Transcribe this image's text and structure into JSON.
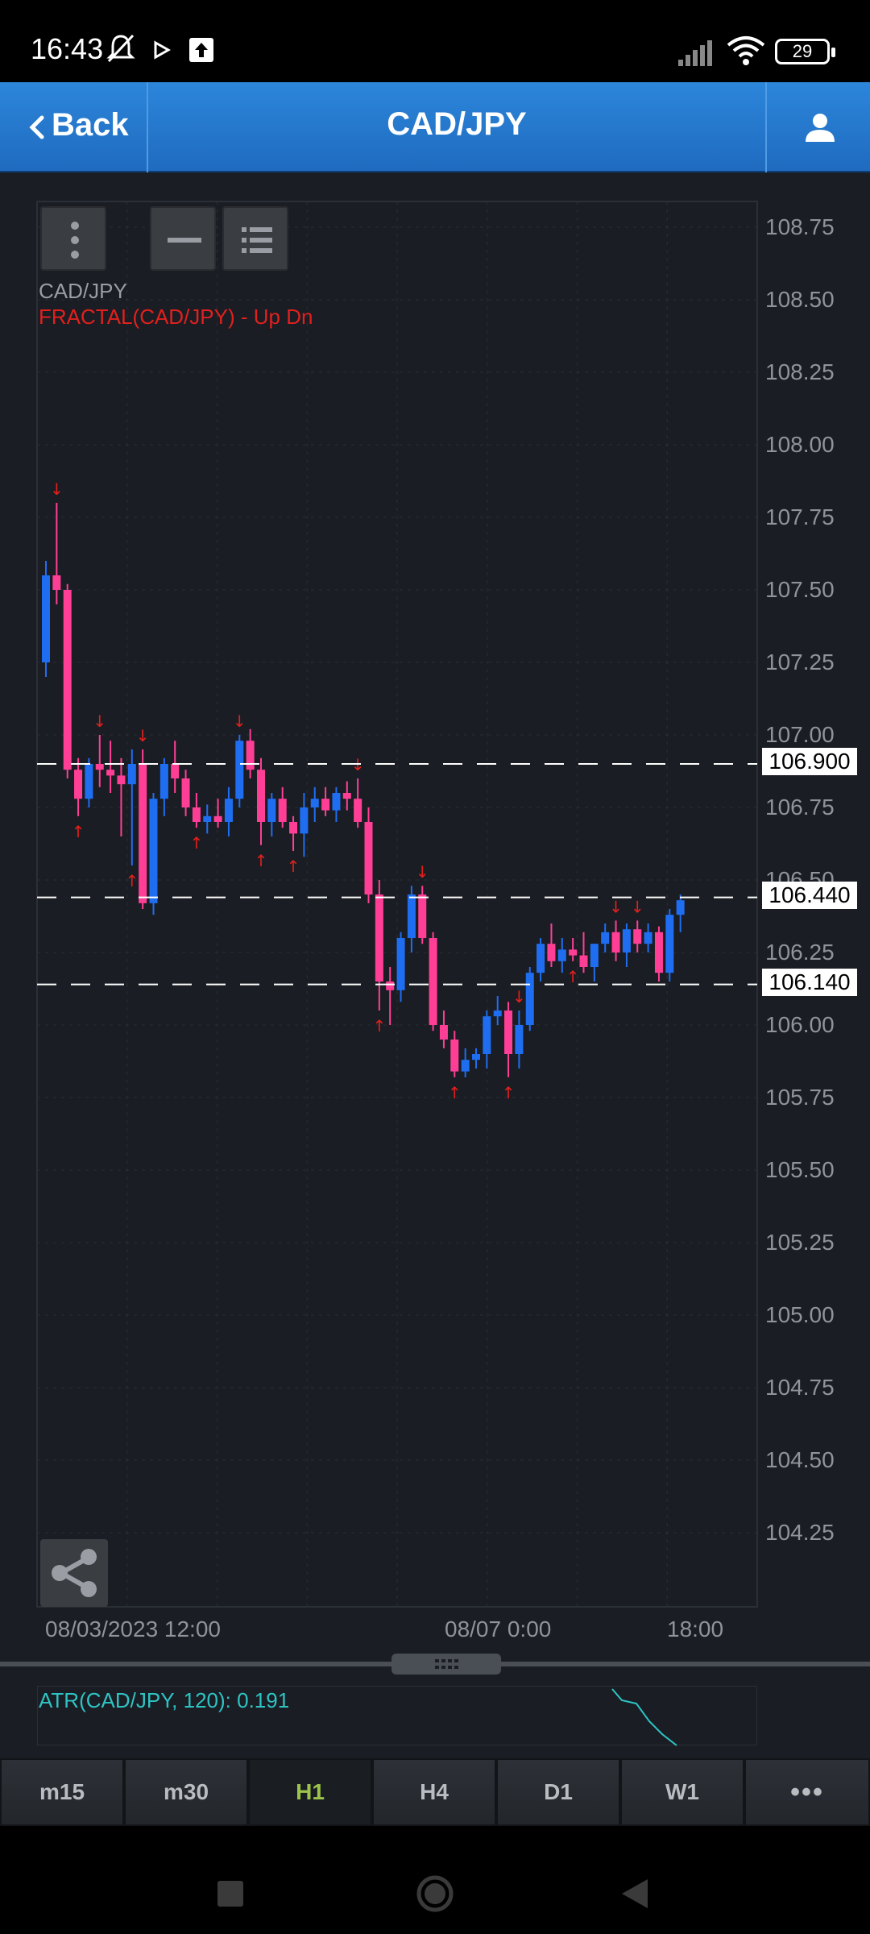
{
  "status_bar": {
    "time": "16:43",
    "battery": "29"
  },
  "header": {
    "back_label": "Back",
    "title": "CAD/JPY"
  },
  "chart": {
    "symbol_label": "CAD/JPY",
    "indicator_label": "FRACTAL(CAD/JPY) - Up Dn",
    "price_ticks": [
      "108.75",
      "108.50",
      "108.25",
      "108.00",
      "107.75",
      "107.50",
      "107.25",
      "107.00",
      "106.75",
      "106.50",
      "106.25",
      "106.00",
      "105.75",
      "105.50",
      "105.25",
      "105.00",
      "104.75",
      "104.50",
      "104.25"
    ],
    "price_lines": [
      "106.900",
      "106.440",
      "106.140"
    ],
    "time_labels": [
      "08/03/2023 12:00",
      "08/07 0:00",
      "18:00"
    ],
    "colors": {
      "up": "#1f6ef2",
      "down": "#ff3f96",
      "fractal": "#e2201e",
      "background": "#1a1d23",
      "grid": "#2b2f36"
    }
  },
  "chart_data": {
    "type": "candlestick",
    "y_range": [
      104.1,
      108.8
    ],
    "candles": [
      {
        "o": 107.25,
        "h": 107.6,
        "l": 107.2,
        "c": 107.55
      },
      {
        "o": 107.55,
        "h": 107.8,
        "l": 107.45,
        "c": 107.5
      },
      {
        "o": 107.5,
        "h": 107.52,
        "l": 106.85,
        "c": 106.88
      },
      {
        "o": 106.88,
        "h": 106.92,
        "l": 106.72,
        "c": 106.78
      },
      {
        "o": 106.78,
        "h": 106.92,
        "l": 106.75,
        "c": 106.9
      },
      {
        "o": 106.9,
        "h": 107.0,
        "l": 106.82,
        "c": 106.88
      },
      {
        "o": 106.88,
        "h": 106.98,
        "l": 106.8,
        "c": 106.86
      },
      {
        "o": 106.86,
        "h": 106.92,
        "l": 106.65,
        "c": 106.83
      },
      {
        "o": 106.83,
        "h": 106.95,
        "l": 106.55,
        "c": 106.9
      },
      {
        "o": 106.9,
        "h": 106.95,
        "l": 106.4,
        "c": 106.42
      },
      {
        "o": 106.42,
        "h": 106.8,
        "l": 106.38,
        "c": 106.78
      },
      {
        "o": 106.78,
        "h": 106.92,
        "l": 106.72,
        "c": 106.9
      },
      {
        "o": 106.9,
        "h": 106.98,
        "l": 106.8,
        "c": 106.85
      },
      {
        "o": 106.85,
        "h": 106.88,
        "l": 106.72,
        "c": 106.75
      },
      {
        "o": 106.75,
        "h": 106.8,
        "l": 106.68,
        "c": 106.7
      },
      {
        "o": 106.7,
        "h": 106.76,
        "l": 106.66,
        "c": 106.72
      },
      {
        "o": 106.72,
        "h": 106.78,
        "l": 106.68,
        "c": 106.7
      },
      {
        "o": 106.7,
        "h": 106.82,
        "l": 106.65,
        "c": 106.78
      },
      {
        "o": 106.78,
        "h": 107.0,
        "l": 106.75,
        "c": 106.98
      },
      {
        "o": 106.98,
        "h": 107.02,
        "l": 106.85,
        "c": 106.88
      },
      {
        "o": 106.88,
        "h": 106.92,
        "l": 106.62,
        "c": 106.7
      },
      {
        "o": 106.7,
        "h": 106.8,
        "l": 106.65,
        "c": 106.78
      },
      {
        "o": 106.78,
        "h": 106.82,
        "l": 106.68,
        "c": 106.7
      },
      {
        "o": 106.7,
        "h": 106.72,
        "l": 106.6,
        "c": 106.66
      },
      {
        "o": 106.66,
        "h": 106.8,
        "l": 106.58,
        "c": 106.75
      },
      {
        "o": 106.75,
        "h": 106.82,
        "l": 106.7,
        "c": 106.78
      },
      {
        "o": 106.78,
        "h": 106.82,
        "l": 106.72,
        "c": 106.74
      },
      {
        "o": 106.74,
        "h": 106.82,
        "l": 106.7,
        "c": 106.8
      },
      {
        "o": 106.8,
        "h": 106.84,
        "l": 106.74,
        "c": 106.78
      },
      {
        "o": 106.78,
        "h": 106.85,
        "l": 106.68,
        "c": 106.7
      },
      {
        "o": 106.7,
        "h": 106.75,
        "l": 106.42,
        "c": 106.45
      },
      {
        "o": 106.45,
        "h": 106.5,
        "l": 106.05,
        "c": 106.15
      },
      {
        "o": 106.15,
        "h": 106.2,
        "l": 106.0,
        "c": 106.12
      },
      {
        "o": 106.12,
        "h": 106.32,
        "l": 106.08,
        "c": 106.3
      },
      {
        "o": 106.3,
        "h": 106.48,
        "l": 106.25,
        "c": 106.45
      },
      {
        "o": 106.45,
        "h": 106.48,
        "l": 106.28,
        "c": 106.3
      },
      {
        "o": 106.3,
        "h": 106.32,
        "l": 105.98,
        "c": 106.0
      },
      {
        "o": 106.0,
        "h": 106.05,
        "l": 105.92,
        "c": 105.95
      },
      {
        "o": 105.95,
        "h": 105.98,
        "l": 105.82,
        "c": 105.84
      },
      {
        "o": 105.84,
        "h": 105.92,
        "l": 105.82,
        "c": 105.88
      },
      {
        "o": 105.88,
        "h": 105.92,
        "l": 105.85,
        "c": 105.9
      },
      {
        "o": 105.9,
        "h": 106.05,
        "l": 105.85,
        "c": 106.03
      },
      {
        "o": 106.03,
        "h": 106.1,
        "l": 106.0,
        "c": 106.05
      },
      {
        "o": 106.05,
        "h": 106.08,
        "l": 105.82,
        "c": 105.9
      },
      {
        "o": 105.9,
        "h": 106.05,
        "l": 105.85,
        "c": 106.0
      },
      {
        "o": 106.0,
        "h": 106.2,
        "l": 105.98,
        "c": 106.18
      },
      {
        "o": 106.18,
        "h": 106.3,
        "l": 106.15,
        "c": 106.28
      },
      {
        "o": 106.28,
        "h": 106.35,
        "l": 106.2,
        "c": 106.22
      },
      {
        "o": 106.22,
        "h": 106.3,
        "l": 106.18,
        "c": 106.26
      },
      {
        "o": 106.26,
        "h": 106.3,
        "l": 106.22,
        "c": 106.24
      },
      {
        "o": 106.24,
        "h": 106.32,
        "l": 106.18,
        "c": 106.2
      },
      {
        "o": 106.2,
        "h": 106.28,
        "l": 106.15,
        "c": 106.28
      },
      {
        "o": 106.28,
        "h": 106.35,
        "l": 106.25,
        "c": 106.32
      },
      {
        "o": 106.32,
        "h": 106.36,
        "l": 106.22,
        "c": 106.25
      },
      {
        "o": 106.25,
        "h": 106.35,
        "l": 106.2,
        "c": 106.33
      },
      {
        "o": 106.33,
        "h": 106.36,
        "l": 106.25,
        "c": 106.28
      },
      {
        "o": 106.28,
        "h": 106.35,
        "l": 106.25,
        "c": 106.32
      },
      {
        "o": 106.32,
        "h": 106.34,
        "l": 106.15,
        "c": 106.18
      },
      {
        "o": 106.18,
        "h": 106.4,
        "l": 106.15,
        "c": 106.38
      },
      {
        "o": 106.38,
        "h": 106.45,
        "l": 106.32,
        "c": 106.43
      }
    ],
    "fractals_up": [
      1,
      5,
      9,
      18,
      29,
      35,
      44,
      53,
      55
    ],
    "fractals_down": [
      3,
      8,
      14,
      20,
      23,
      31,
      38,
      43,
      49
    ],
    "ticks": [
      108.75,
      108.5,
      108.25,
      108.0,
      107.75,
      107.5,
      107.25,
      107.0,
      106.75,
      106.5,
      106.25,
      106.0,
      105.75,
      105.5,
      105.25,
      105.0,
      104.75,
      104.5,
      104.25
    ],
    "price_lines": [
      106.9,
      106.44,
      106.14
    ]
  },
  "atr": {
    "label": "ATR(CAD/JPY, 120): 0.191"
  },
  "timeframes": [
    {
      "label": "m15"
    },
    {
      "label": "m30"
    },
    {
      "label": "H1"
    },
    {
      "label": "H4"
    },
    {
      "label": "D1"
    },
    {
      "label": "W1"
    }
  ],
  "more_label": "•••"
}
